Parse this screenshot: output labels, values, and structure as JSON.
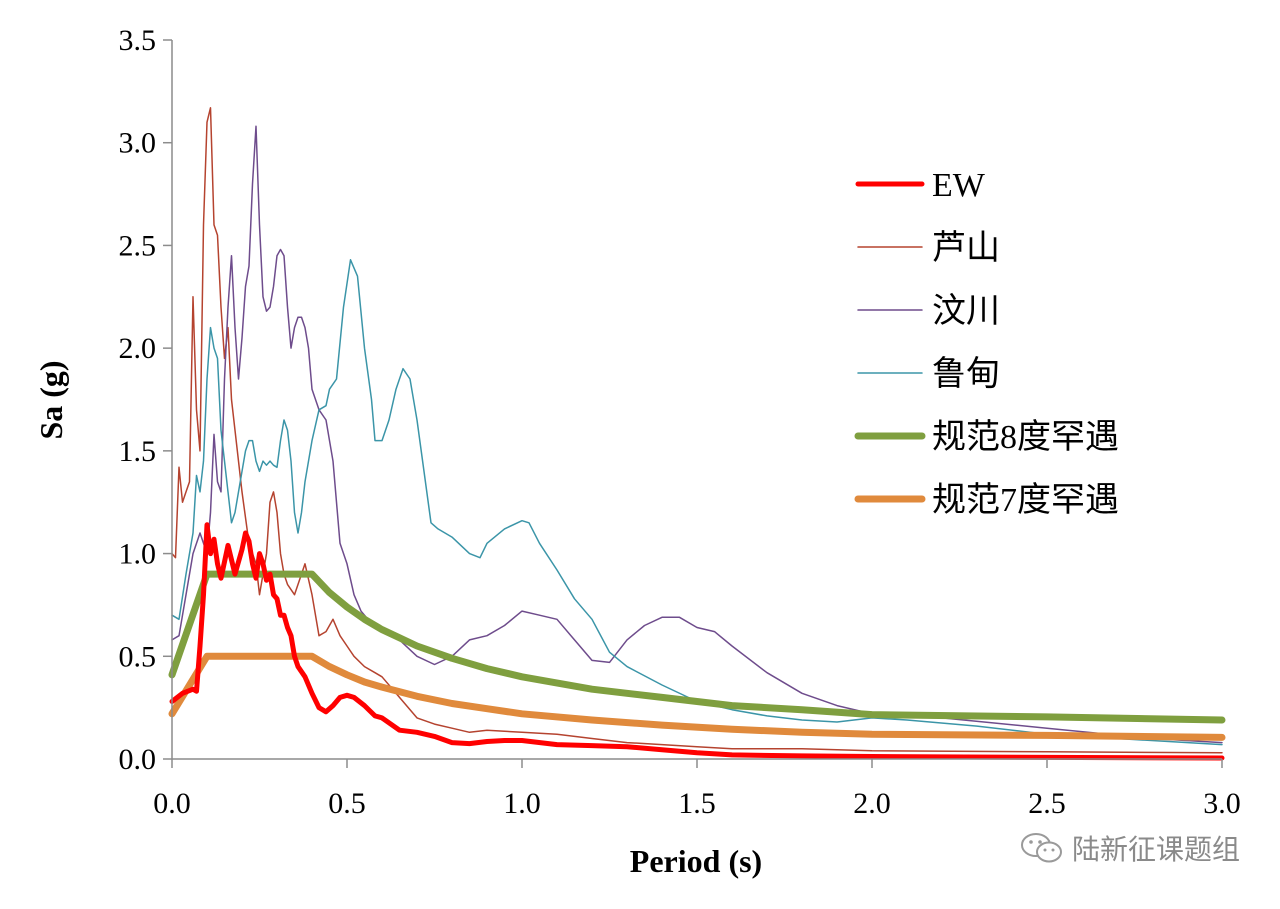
{
  "chart_data": {
    "type": "line",
    "xlabel": "Period (s)",
    "ylabel": "Sa (g)",
    "xlim": [
      0,
      3.0
    ],
    "ylim": [
      0,
      3.5
    ],
    "xticks": [
      "0.0",
      "0.5",
      "1.0",
      "1.5",
      "2.0",
      "2.5",
      "3.0"
    ],
    "yticks": [
      "0.0",
      "0.5",
      "1.0",
      "1.5",
      "2.0",
      "2.5",
      "3.0",
      "3.5"
    ],
    "grid": false,
    "legend_position": "right",
    "series": [
      {
        "name": "EW",
        "color": "#ff0000",
        "width": 5,
        "points": [
          [
            0,
            0.28
          ],
          [
            0.03,
            0.32
          ],
          [
            0.06,
            0.34
          ],
          [
            0.07,
            0.33
          ],
          [
            0.08,
            0.55
          ],
          [
            0.09,
            0.8
          ],
          [
            0.1,
            1.14
          ],
          [
            0.11,
            1.0
          ],
          [
            0.12,
            1.07
          ],
          [
            0.13,
            0.95
          ],
          [
            0.14,
            0.88
          ],
          [
            0.16,
            1.04
          ],
          [
            0.18,
            0.9
          ],
          [
            0.2,
            1.02
          ],
          [
            0.21,
            1.1
          ],
          [
            0.22,
            1.06
          ],
          [
            0.23,
            0.95
          ],
          [
            0.24,
            0.88
          ],
          [
            0.25,
            1.0
          ],
          [
            0.26,
            0.95
          ],
          [
            0.27,
            0.87
          ],
          [
            0.28,
            0.9
          ],
          [
            0.29,
            0.8
          ],
          [
            0.3,
            0.78
          ],
          [
            0.31,
            0.7
          ],
          [
            0.32,
            0.7
          ],
          [
            0.33,
            0.64
          ],
          [
            0.34,
            0.6
          ],
          [
            0.35,
            0.5
          ],
          [
            0.36,
            0.45
          ],
          [
            0.38,
            0.4
          ],
          [
            0.4,
            0.32
          ],
          [
            0.42,
            0.25
          ],
          [
            0.44,
            0.23
          ],
          [
            0.46,
            0.26
          ],
          [
            0.48,
            0.3
          ],
          [
            0.5,
            0.31
          ],
          [
            0.52,
            0.3
          ],
          [
            0.55,
            0.26
          ],
          [
            0.58,
            0.21
          ],
          [
            0.6,
            0.2
          ],
          [
            0.65,
            0.14
          ],
          [
            0.7,
            0.13
          ],
          [
            0.75,
            0.11
          ],
          [
            0.8,
            0.08
          ],
          [
            0.85,
            0.075
          ],
          [
            0.9,
            0.085
          ],
          [
            0.95,
            0.09
          ],
          [
            1.0,
            0.09
          ],
          [
            1.1,
            0.07
          ],
          [
            1.2,
            0.065
          ],
          [
            1.3,
            0.06
          ],
          [
            1.4,
            0.045
          ],
          [
            1.5,
            0.03
          ],
          [
            1.6,
            0.02
          ],
          [
            1.8,
            0.015
          ],
          [
            2.0,
            0.012
          ],
          [
            2.5,
            0.008
          ],
          [
            3.0,
            0.005
          ]
        ]
      },
      {
        "name": "芦山",
        "color": "#b5432f",
        "width": 1.5,
        "points": [
          [
            0,
            1.0
          ],
          [
            0.01,
            0.98
          ],
          [
            0.02,
            1.42
          ],
          [
            0.03,
            1.25
          ],
          [
            0.04,
            1.3
          ],
          [
            0.05,
            1.35
          ],
          [
            0.06,
            2.25
          ],
          [
            0.07,
            1.7
          ],
          [
            0.08,
            1.5
          ],
          [
            0.09,
            2.6
          ],
          [
            0.1,
            3.1
          ],
          [
            0.11,
            3.17
          ],
          [
            0.12,
            2.6
          ],
          [
            0.13,
            2.55
          ],
          [
            0.14,
            2.2
          ],
          [
            0.15,
            1.95
          ],
          [
            0.16,
            2.1
          ],
          [
            0.17,
            1.75
          ],
          [
            0.18,
            1.6
          ],
          [
            0.2,
            1.3
          ],
          [
            0.22,
            1.05
          ],
          [
            0.24,
            0.95
          ],
          [
            0.25,
            0.8
          ],
          [
            0.26,
            0.9
          ],
          [
            0.27,
            1.0
          ],
          [
            0.28,
            1.25
          ],
          [
            0.29,
            1.3
          ],
          [
            0.3,
            1.2
          ],
          [
            0.31,
            1.0
          ],
          [
            0.32,
            0.9
          ],
          [
            0.33,
            0.85
          ],
          [
            0.35,
            0.8
          ],
          [
            0.37,
            0.9
          ],
          [
            0.38,
            0.95
          ],
          [
            0.4,
            0.8
          ],
          [
            0.42,
            0.6
          ],
          [
            0.44,
            0.62
          ],
          [
            0.46,
            0.68
          ],
          [
            0.48,
            0.6
          ],
          [
            0.5,
            0.55
          ],
          [
            0.52,
            0.5
          ],
          [
            0.55,
            0.45
          ],
          [
            0.58,
            0.42
          ],
          [
            0.6,
            0.4
          ],
          [
            0.65,
            0.3
          ],
          [
            0.7,
            0.2
          ],
          [
            0.75,
            0.17
          ],
          [
            0.8,
            0.15
          ],
          [
            0.85,
            0.13
          ],
          [
            0.9,
            0.14
          ],
          [
            1.0,
            0.13
          ],
          [
            1.1,
            0.12
          ],
          [
            1.2,
            0.1
          ],
          [
            1.3,
            0.08
          ],
          [
            1.4,
            0.07
          ],
          [
            1.5,
            0.06
          ],
          [
            1.6,
            0.05
          ],
          [
            1.8,
            0.05
          ],
          [
            2.0,
            0.04
          ],
          [
            2.5,
            0.035
          ],
          [
            3.0,
            0.03
          ]
        ]
      },
      {
        "name": "汶川",
        "color": "#6e4c8c",
        "width": 1.5,
        "points": [
          [
            0,
            0.58
          ],
          [
            0.02,
            0.6
          ],
          [
            0.04,
            0.8
          ],
          [
            0.06,
            1.0
          ],
          [
            0.08,
            1.1
          ],
          [
            0.09,
            1.05
          ],
          [
            0.1,
            1.0
          ],
          [
            0.11,
            1.2
          ],
          [
            0.12,
            1.58
          ],
          [
            0.13,
            1.35
          ],
          [
            0.14,
            1.3
          ],
          [
            0.15,
            1.85
          ],
          [
            0.16,
            2.2
          ],
          [
            0.17,
            2.45
          ],
          [
            0.18,
            2.1
          ],
          [
            0.19,
            1.85
          ],
          [
            0.2,
            2.05
          ],
          [
            0.21,
            2.3
          ],
          [
            0.22,
            2.4
          ],
          [
            0.23,
            2.8
          ],
          [
            0.24,
            3.08
          ],
          [
            0.25,
            2.6
          ],
          [
            0.26,
            2.25
          ],
          [
            0.27,
            2.18
          ],
          [
            0.28,
            2.2
          ],
          [
            0.29,
            2.3
          ],
          [
            0.3,
            2.45
          ],
          [
            0.31,
            2.48
          ],
          [
            0.32,
            2.45
          ],
          [
            0.33,
            2.2
          ],
          [
            0.34,
            2.0
          ],
          [
            0.35,
            2.1
          ],
          [
            0.36,
            2.15
          ],
          [
            0.37,
            2.15
          ],
          [
            0.38,
            2.1
          ],
          [
            0.39,
            2.0
          ],
          [
            0.4,
            1.8
          ],
          [
            0.42,
            1.7
          ],
          [
            0.44,
            1.65
          ],
          [
            0.46,
            1.45
          ],
          [
            0.48,
            1.05
          ],
          [
            0.5,
            0.95
          ],
          [
            0.52,
            0.8
          ],
          [
            0.54,
            0.72
          ],
          [
            0.56,
            0.68
          ],
          [
            0.58,
            0.65
          ],
          [
            0.6,
            0.63
          ],
          [
            0.63,
            0.6
          ],
          [
            0.65,
            0.58
          ],
          [
            0.7,
            0.5
          ],
          [
            0.75,
            0.46
          ],
          [
            0.8,
            0.5
          ],
          [
            0.85,
            0.58
          ],
          [
            0.9,
            0.6
          ],
          [
            0.95,
            0.65
          ],
          [
            1.0,
            0.72
          ],
          [
            1.05,
            0.7
          ],
          [
            1.1,
            0.68
          ],
          [
            1.15,
            0.58
          ],
          [
            1.2,
            0.48
          ],
          [
            1.25,
            0.47
          ],
          [
            1.3,
            0.58
          ],
          [
            1.35,
            0.65
          ],
          [
            1.4,
            0.69
          ],
          [
            1.45,
            0.69
          ],
          [
            1.5,
            0.64
          ],
          [
            1.55,
            0.62
          ],
          [
            1.6,
            0.55
          ],
          [
            1.7,
            0.42
          ],
          [
            1.8,
            0.32
          ],
          [
            1.9,
            0.26
          ],
          [
            2.0,
            0.22
          ],
          [
            2.2,
            0.2
          ],
          [
            2.5,
            0.15
          ],
          [
            2.8,
            0.1
          ],
          [
            3.0,
            0.08
          ]
        ]
      },
      {
        "name": "鲁甸",
        "color": "#3b95a8",
        "width": 1.5,
        "points": [
          [
            0,
            0.7
          ],
          [
            0.02,
            0.68
          ],
          [
            0.04,
            0.9
          ],
          [
            0.06,
            1.1
          ],
          [
            0.07,
            1.38
          ],
          [
            0.08,
            1.3
          ],
          [
            0.09,
            1.45
          ],
          [
            0.1,
            1.85
          ],
          [
            0.11,
            2.1
          ],
          [
            0.12,
            2.0
          ],
          [
            0.13,
            1.95
          ],
          [
            0.14,
            1.6
          ],
          [
            0.15,
            1.45
          ],
          [
            0.16,
            1.3
          ],
          [
            0.17,
            1.15
          ],
          [
            0.18,
            1.2
          ],
          [
            0.19,
            1.3
          ],
          [
            0.2,
            1.4
          ],
          [
            0.21,
            1.5
          ],
          [
            0.22,
            1.55
          ],
          [
            0.23,
            1.55
          ],
          [
            0.24,
            1.45
          ],
          [
            0.25,
            1.4
          ],
          [
            0.26,
            1.45
          ],
          [
            0.27,
            1.43
          ],
          [
            0.28,
            1.45
          ],
          [
            0.29,
            1.43
          ],
          [
            0.3,
            1.42
          ],
          [
            0.31,
            1.55
          ],
          [
            0.32,
            1.65
          ],
          [
            0.33,
            1.6
          ],
          [
            0.34,
            1.45
          ],
          [
            0.35,
            1.2
          ],
          [
            0.36,
            1.1
          ],
          [
            0.37,
            1.2
          ],
          [
            0.38,
            1.35
          ],
          [
            0.4,
            1.55
          ],
          [
            0.42,
            1.7
          ],
          [
            0.44,
            1.72
          ],
          [
            0.45,
            1.8
          ],
          [
            0.47,
            1.85
          ],
          [
            0.49,
            2.2
          ],
          [
            0.51,
            2.43
          ],
          [
            0.53,
            2.35
          ],
          [
            0.55,
            2.0
          ],
          [
            0.57,
            1.75
          ],
          [
            0.58,
            1.55
          ],
          [
            0.6,
            1.55
          ],
          [
            0.62,
            1.65
          ],
          [
            0.64,
            1.8
          ],
          [
            0.66,
            1.9
          ],
          [
            0.68,
            1.85
          ],
          [
            0.7,
            1.65
          ],
          [
            0.72,
            1.4
          ],
          [
            0.74,
            1.15
          ],
          [
            0.76,
            1.12
          ],
          [
            0.8,
            1.08
          ],
          [
            0.85,
            1.0
          ],
          [
            0.88,
            0.98
          ],
          [
            0.9,
            1.05
          ],
          [
            0.95,
            1.12
          ],
          [
            1.0,
            1.16
          ],
          [
            1.02,
            1.15
          ],
          [
            1.05,
            1.05
          ],
          [
            1.1,
            0.92
          ],
          [
            1.15,
            0.78
          ],
          [
            1.2,
            0.68
          ],
          [
            1.25,
            0.52
          ],
          [
            1.3,
            0.45
          ],
          [
            1.4,
            0.36
          ],
          [
            1.5,
            0.28
          ],
          [
            1.6,
            0.24
          ],
          [
            1.7,
            0.21
          ],
          [
            1.8,
            0.19
          ],
          [
            1.9,
            0.18
          ],
          [
            2.0,
            0.2
          ],
          [
            2.1,
            0.19
          ],
          [
            2.3,
            0.16
          ],
          [
            2.5,
            0.12
          ],
          [
            2.7,
            0.1
          ],
          [
            3.0,
            0.07
          ]
        ]
      },
      {
        "name": "规范8度罕遇",
        "color": "#7f9f3f",
        "width": 7,
        "points": [
          [
            0,
            0.41
          ],
          [
            0.1,
            0.9
          ],
          [
            0.4,
            0.9
          ],
          [
            0.45,
            0.81
          ],
          [
            0.5,
            0.74
          ],
          [
            0.55,
            0.68
          ],
          [
            0.6,
            0.63
          ],
          [
            0.7,
            0.55
          ],
          [
            0.8,
            0.49
          ],
          [
            0.9,
            0.44
          ],
          [
            1.0,
            0.4
          ],
          [
            1.2,
            0.34
          ],
          [
            1.4,
            0.3
          ],
          [
            1.6,
            0.26
          ],
          [
            1.8,
            0.24
          ],
          [
            2.0,
            0.216
          ],
          [
            2.5,
            0.205
          ],
          [
            3.0,
            0.19
          ]
        ]
      },
      {
        "name": "规范7度罕遇",
        "color": "#e08a3c",
        "width": 7,
        "points": [
          [
            0,
            0.22
          ],
          [
            0.1,
            0.5
          ],
          [
            0.4,
            0.5
          ],
          [
            0.45,
            0.45
          ],
          [
            0.5,
            0.41
          ],
          [
            0.55,
            0.375
          ],
          [
            0.6,
            0.35
          ],
          [
            0.7,
            0.305
          ],
          [
            0.8,
            0.27
          ],
          [
            0.9,
            0.245
          ],
          [
            1.0,
            0.22
          ],
          [
            1.2,
            0.19
          ],
          [
            1.4,
            0.165
          ],
          [
            1.6,
            0.145
          ],
          [
            1.8,
            0.13
          ],
          [
            2.0,
            0.12
          ],
          [
            2.5,
            0.115
          ],
          [
            3.0,
            0.105
          ]
        ]
      }
    ]
  },
  "watermark": {
    "text": "陆新征课题组",
    "icon": "wechat-icon"
  }
}
